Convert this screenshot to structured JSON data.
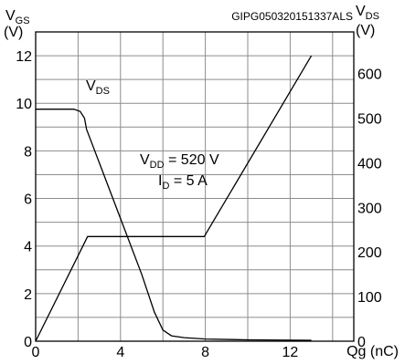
{
  "chart_data": {
    "type": "line",
    "title": "",
    "chart_id": "GIPG050320151337ALS",
    "xlabel": "Qg (nC)",
    "ylabel_left": {
      "main": "V",
      "sub": "GS",
      "unit": "(V)"
    },
    "ylabel_right": {
      "main": "V",
      "sub": "DS",
      "unit": "(V)"
    },
    "xlim": [
      0,
      15
    ],
    "ylim_left": [
      0,
      13
    ],
    "ylim_right": [
      0,
      693.33
    ],
    "x_ticks": [
      "0",
      "4",
      "8",
      "12"
    ],
    "y_left_ticks": [
      "0",
      "2",
      "4",
      "6",
      "8",
      "10",
      "12"
    ],
    "y_right_ticks": [
      "0",
      "100",
      "200",
      "300",
      "400",
      "500",
      "600"
    ],
    "grid": true,
    "series": [
      {
        "name": "VGS",
        "axis": "left",
        "x": [
          0,
          2.45,
          7.95,
          13.0
        ],
        "y": [
          0,
          4.4,
          4.4,
          12.0
        ]
      },
      {
        "name": "VDS",
        "axis": "right",
        "x": [
          0,
          1.8,
          2.1,
          2.3,
          2.4,
          3.0,
          4.0,
          5.0,
          5.6,
          6.0,
          6.4,
          7.0,
          8.0,
          10.0,
          13.0
        ],
        "y": [
          520,
          520,
          515,
          500,
          475,
          400,
          275,
          150,
          65,
          25,
          12,
          8,
          5,
          3,
          2
        ]
      }
    ],
    "annotations": [
      {
        "id": "vds-label",
        "main": "V",
        "sub": "DS",
        "tail": ""
      },
      {
        "id": "vdd-label",
        "main": "V",
        "sub": "DD",
        "tail": " = 520 V"
      },
      {
        "id": "id-label",
        "main": "I",
        "sub": "D",
        "tail": " = 5 A"
      }
    ]
  }
}
